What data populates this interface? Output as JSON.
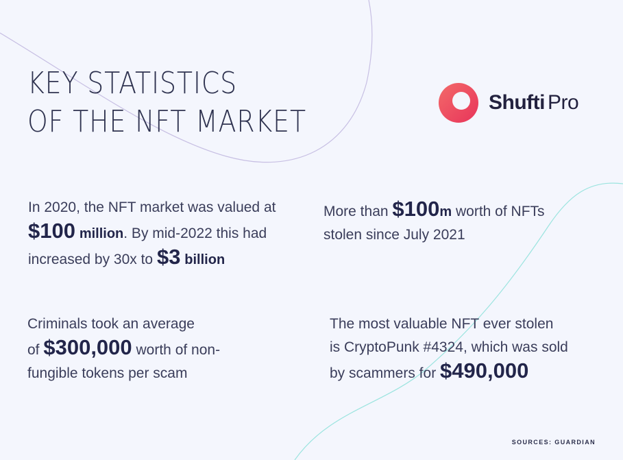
{
  "title": {
    "line1": "KEY STATISTICS",
    "line2": "OF THE NFT MARKET"
  },
  "logo": {
    "word1": "Shufti",
    "word2": "Pro",
    "color": "#ee4b5d"
  },
  "stat1": {
    "t1": "In 2020, the NFT market was valued at",
    "v1": "$100",
    "u1": "million",
    "t2": ". By mid-2022 this had",
    "t3": "increased by 30x to ",
    "v2": "$3",
    "u2": "billion"
  },
  "stat2": {
    "t1": "More than ",
    "v1": "$100",
    "u1": "m",
    "t2": " worth of NFTs",
    "t3": "stolen since July 2021"
  },
  "stat3": {
    "t1": "Criminals took an average",
    "t2": "of ",
    "v1": "$300,000",
    "t3": " worth of non-",
    "t4": "fungible tokens per scam"
  },
  "stat4": {
    "t1": "The most valuable NFT ever stolen",
    "t2": "is CryptoPunk #4324, which was sold",
    "t3": "by scammers for ",
    "v1": "$490,000"
  },
  "source": "SOURCES: GUARDIAN",
  "colors": {
    "background": "#f4f6fd",
    "text": "#2a2d4a",
    "curve_purple": "#c7bfe3",
    "curve_teal": "#93e3de"
  }
}
